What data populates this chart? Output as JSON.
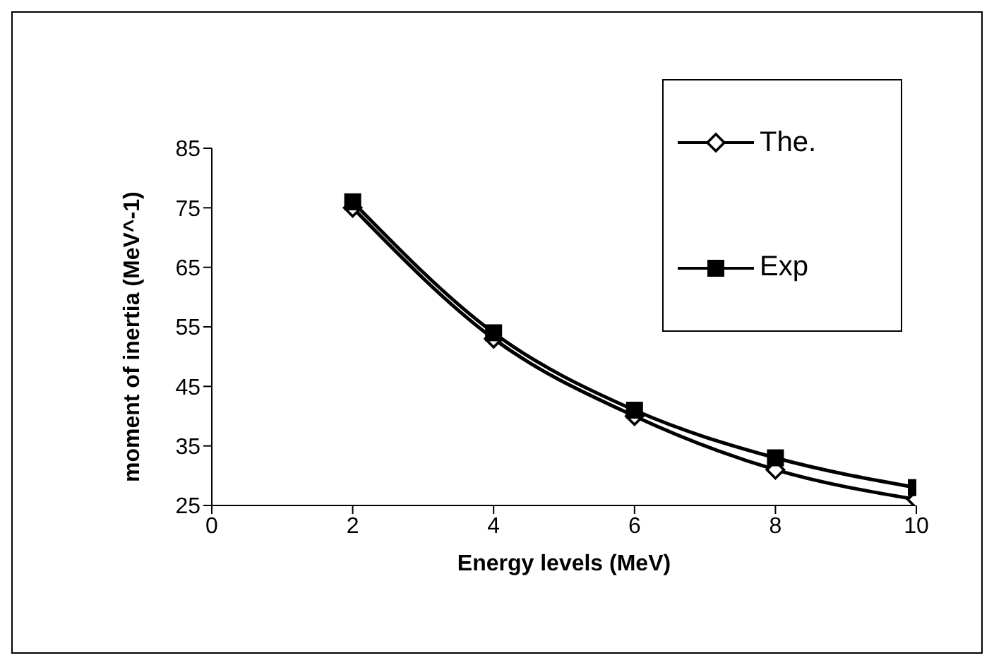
{
  "chart_data": {
    "type": "line",
    "xlabel": "Energy levels (MeV)",
    "ylabel": "moment of inertia (MeV^-1)",
    "x": [
      2,
      4,
      6,
      8,
      10
    ],
    "series": [
      {
        "name": "The.",
        "color": "#000000",
        "marker": "diamond",
        "values": [
          75,
          53,
          40,
          31,
          26
        ]
      },
      {
        "name": "Exp",
        "color": "#000000",
        "marker": "square",
        "values": [
          76,
          54,
          41,
          33,
          28
        ]
      }
    ],
    "xlim": [
      0,
      10
    ],
    "xticks": [
      0,
      2,
      4,
      6,
      8,
      10
    ],
    "ylim": [
      25,
      85
    ],
    "yticks": [
      25,
      35,
      45,
      55,
      65,
      75,
      85
    ],
    "grid": false,
    "legend": "top right"
  }
}
